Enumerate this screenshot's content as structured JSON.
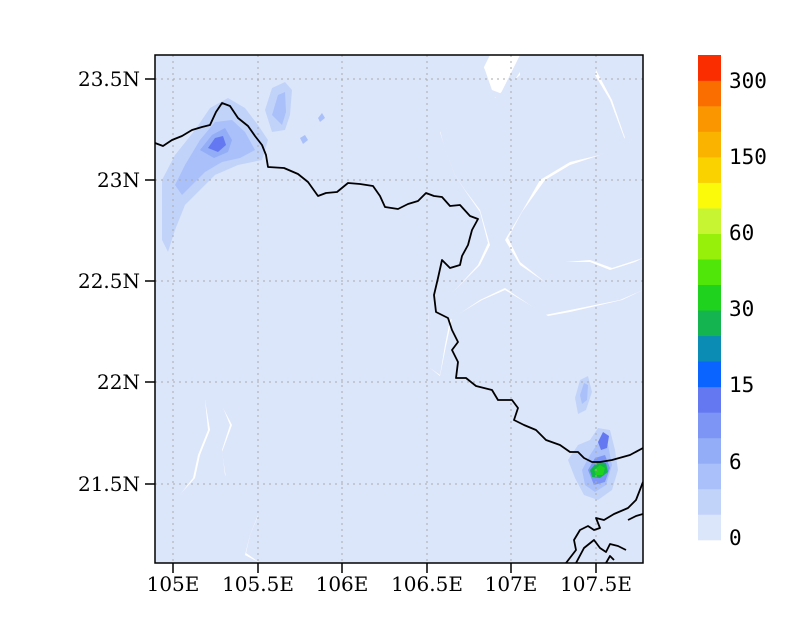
{
  "map": {
    "lat_ticks": [
      "23.5N",
      "23N",
      "22.5N",
      "22N",
      "21.5N"
    ],
    "lon_ticks": [
      "105E",
      "105.5E",
      "106E",
      "106.5E",
      "107E",
      "107.5E"
    ],
    "extent": {
      "lon_min": 104.94,
      "lon_max": 107.79,
      "lat_min": 21.1,
      "lat_max": 23.64
    }
  },
  "colorbar": {
    "labels": [
      "0",
      "6",
      "15",
      "30",
      "60",
      "150",
      "300"
    ],
    "colors": [
      "#dce6fa",
      "#c2d3fa",
      "#a9c0fa",
      "#93adf7",
      "#7d96f5",
      "#6478f2",
      "#0a64ff",
      "#0a8cb4",
      "#14b450",
      "#1ed21e",
      "#50e60a",
      "#96f00a",
      "#c8f532",
      "#fafa0a",
      "#fad200",
      "#fab400",
      "#fa9600",
      "#fa6e00",
      "#fa2d00"
    ]
  },
  "colors": {
    "field_base": "#dce6fa",
    "land_boundary": "#000000",
    "grid": "#aaaaaa"
  }
}
